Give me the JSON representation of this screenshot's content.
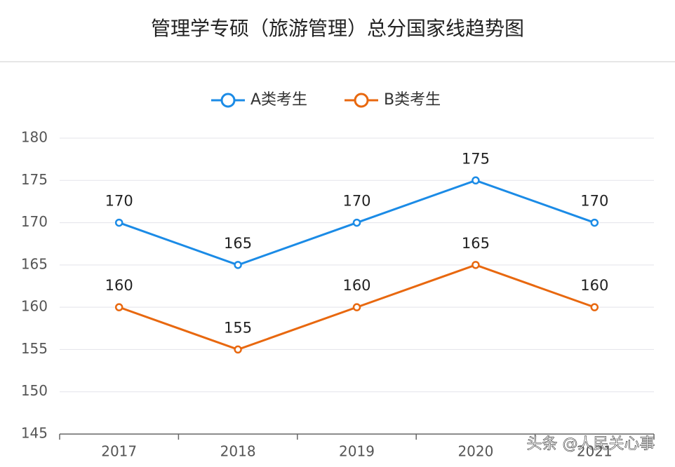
{
  "chart_data": {
    "type": "line",
    "title": "管理学专硕（旅游管理）总分国家线趋势图",
    "categories": [
      "2017",
      "2018",
      "2019",
      "2020",
      "2021"
    ],
    "series": [
      {
        "name": "A类考生",
        "color": "#1b8be6",
        "values": [
          170,
          165,
          170,
          175,
          170
        ]
      },
      {
        "name": "B类考生",
        "color": "#e8680f",
        "values": [
          160,
          155,
          160,
          165,
          160
        ]
      }
    ],
    "ylim": [
      145,
      180
    ],
    "yticks": [
      145,
      150,
      155,
      160,
      165,
      170,
      175,
      180
    ],
    "grid": true,
    "legend": "top",
    "data_labels": true
  },
  "watermark": "头条 @人民关心事"
}
